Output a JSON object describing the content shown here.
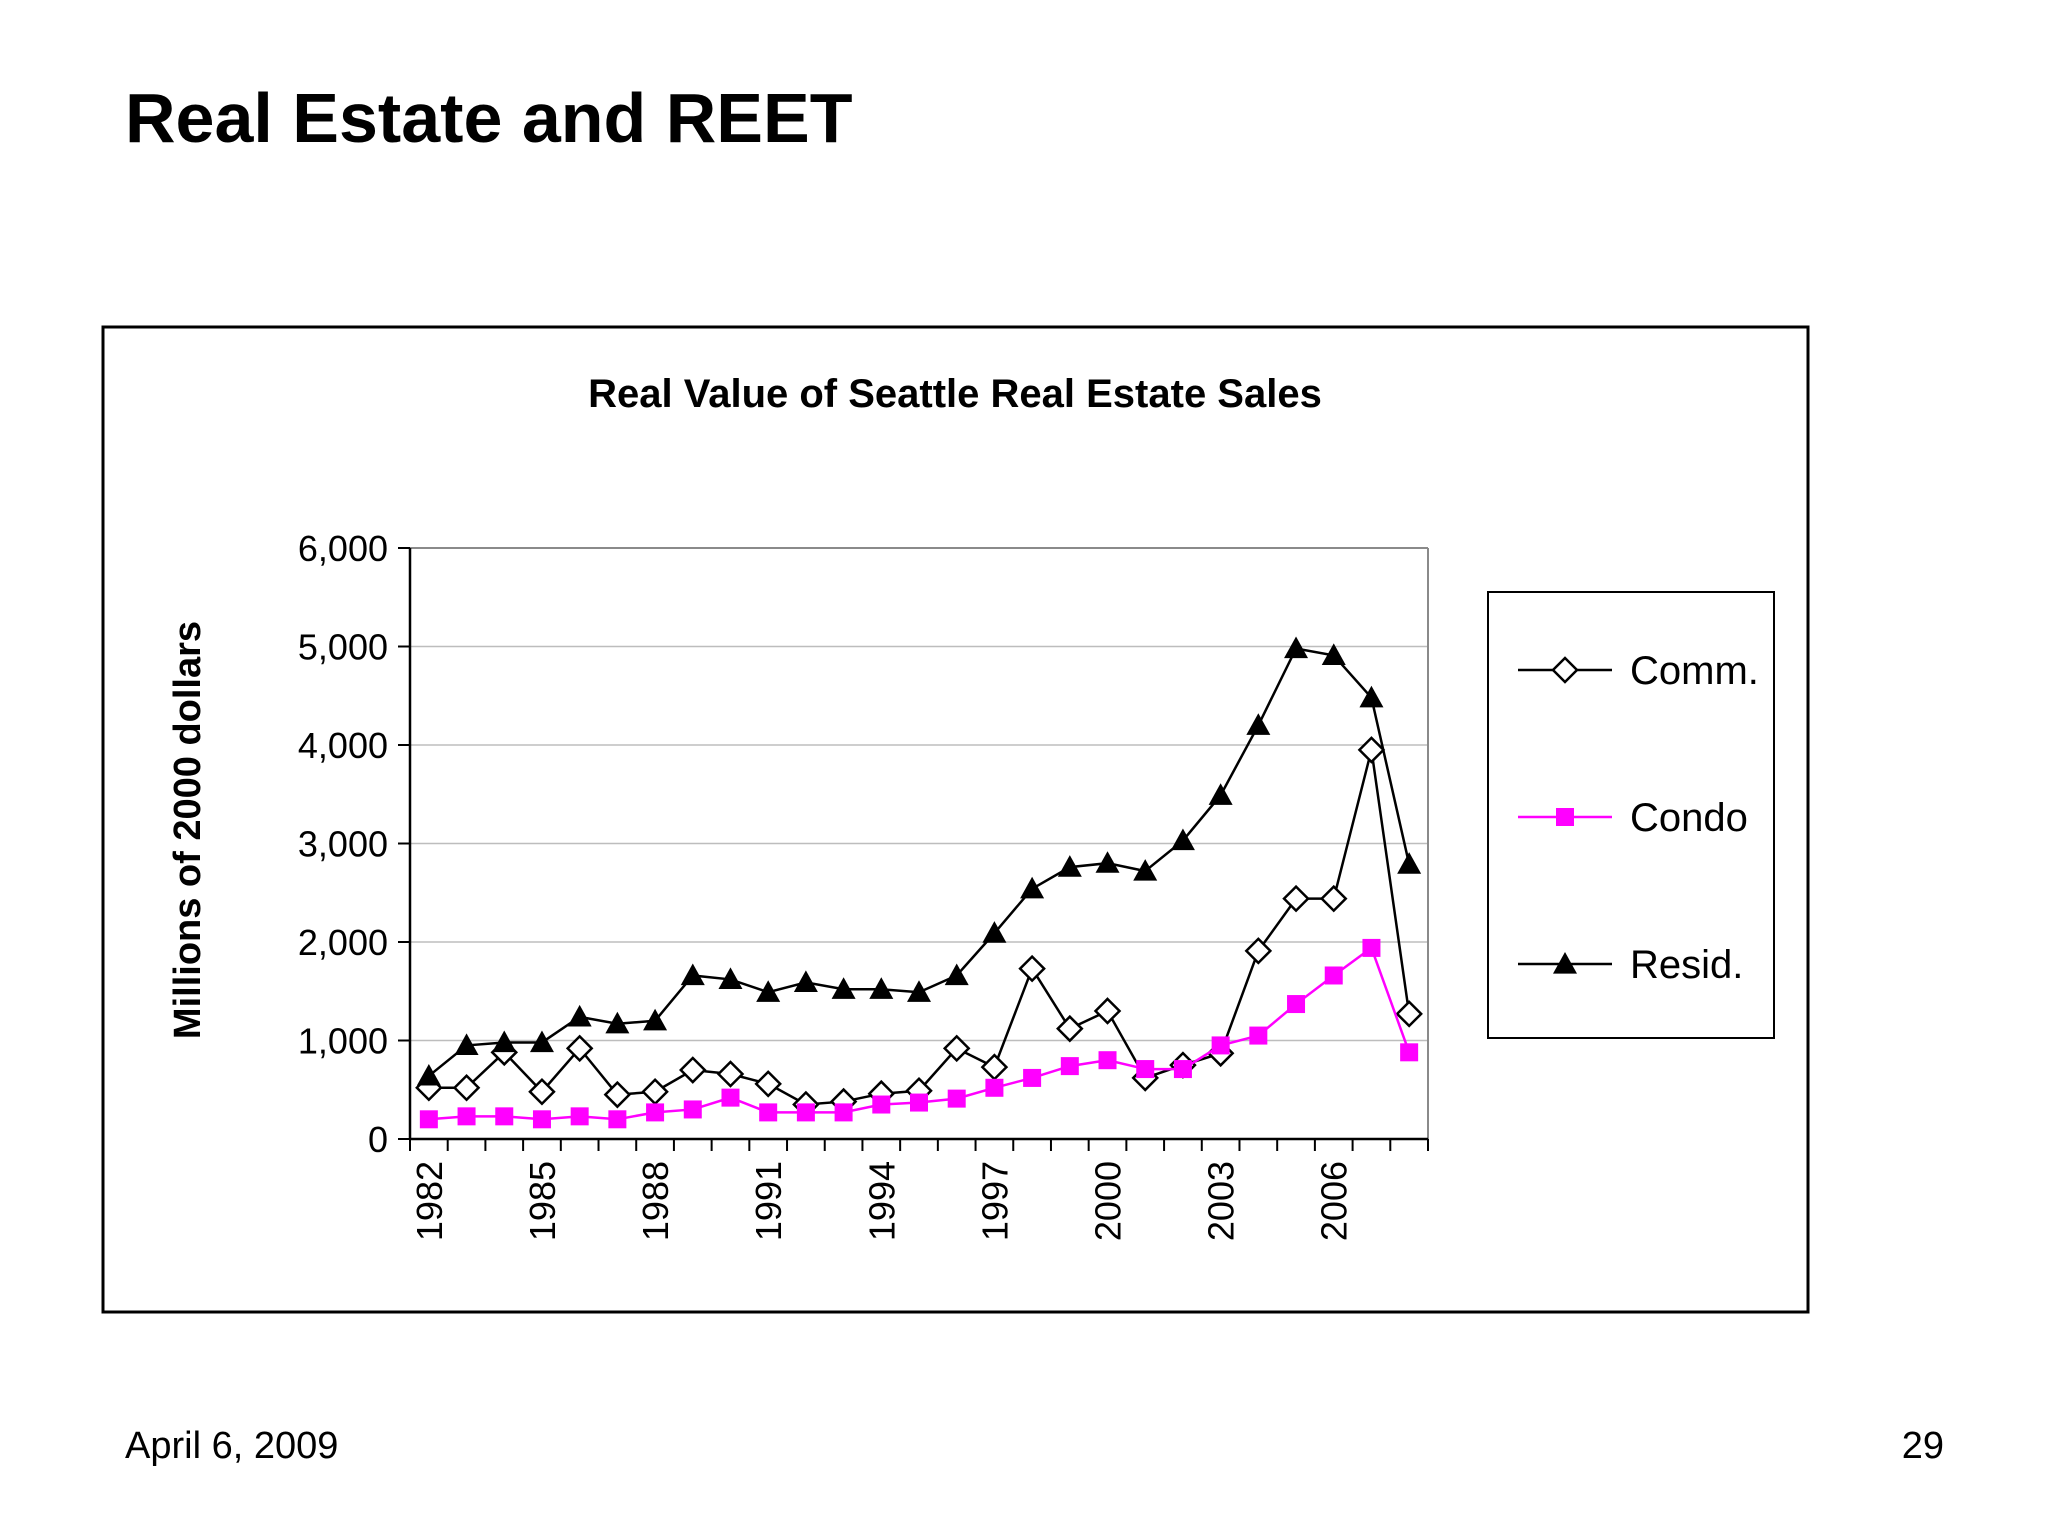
{
  "slide": {
    "title": "Real Estate and REET",
    "date": "April 6, 2009",
    "page_number": "29"
  },
  "chart_data": {
    "type": "line",
    "title": "Real Value of Seattle Real Estate Sales",
    "xlabel": "",
    "ylabel": "Millions of 2000 dollars",
    "ylim": [
      0,
      6000
    ],
    "yticks": [
      0,
      1000,
      2000,
      3000,
      4000,
      5000,
      6000
    ],
    "ytick_labels": [
      "0",
      "1,000",
      "2,000",
      "3,000",
      "4,000",
      "5,000",
      "6,000"
    ],
    "x": [
      1982,
      1983,
      1984,
      1985,
      1986,
      1987,
      1988,
      1989,
      1990,
      1991,
      1992,
      1993,
      1994,
      1995,
      1996,
      1997,
      1998,
      1999,
      2000,
      2001,
      2002,
      2003,
      2004,
      2005,
      2006,
      2007,
      2008
    ],
    "xtick_labels": [
      "1982",
      "1985",
      "1988",
      "1991",
      "1994",
      "1997",
      "2000",
      "2003",
      "2006"
    ],
    "grid": true,
    "legend_position": "right",
    "series": [
      {
        "name": "Comm.",
        "marker": "diamond-open",
        "color": "#000000",
        "values": [
          520,
          520,
          880,
          480,
          920,
          450,
          480,
          700,
          660,
          560,
          350,
          380,
          460,
          490,
          920,
          730,
          1730,
          1120,
          1300,
          620,
          750,
          870,
          1910,
          2440,
          2440,
          3950,
          1270
        ]
      },
      {
        "name": "Condo",
        "marker": "square-filled",
        "color": "#ff00ff",
        "values": [
          200,
          230,
          230,
          200,
          230,
          200,
          270,
          300,
          420,
          270,
          270,
          270,
          350,
          370,
          410,
          520,
          620,
          740,
          800,
          710,
          710,
          950,
          1050,
          1370,
          1660,
          1940,
          880
        ]
      },
      {
        "name": "Resid.",
        "marker": "triangle-filled",
        "color": "#000000",
        "values": [
          640,
          950,
          980,
          980,
          1240,
          1170,
          1200,
          1660,
          1620,
          1490,
          1590,
          1520,
          1520,
          1490,
          1660,
          2090,
          2540,
          2760,
          2800,
          2720,
          3030,
          3490,
          4200,
          4980,
          4910,
          4480,
          2790
        ]
      }
    ]
  }
}
